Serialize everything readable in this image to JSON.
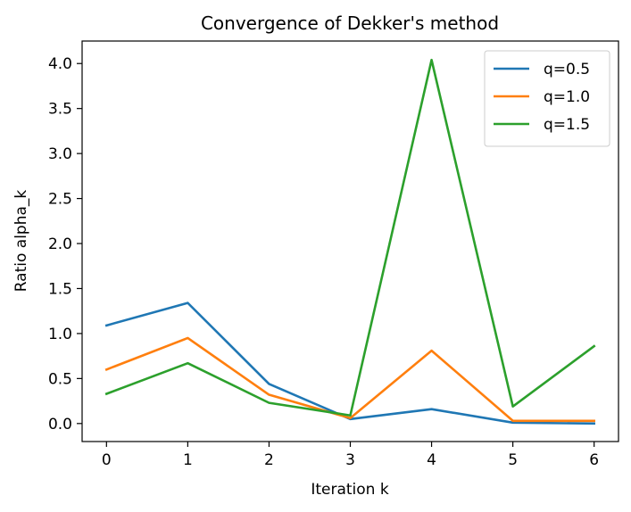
{
  "chart_data": {
    "type": "line",
    "title": "Convergence of Dekker's method",
    "xlabel": "Iteration k",
    "ylabel": "Ratio alpha_k",
    "x": [
      0,
      1,
      2,
      3,
      4,
      5,
      6
    ],
    "xlim": [
      -0.3,
      6.3
    ],
    "ylim": [
      -0.2,
      4.25
    ],
    "xticks": [
      0,
      1,
      2,
      3,
      4,
      5,
      6
    ],
    "yticks": [
      0.0,
      0.5,
      1.0,
      1.5,
      2.0,
      2.5,
      3.0,
      3.5,
      4.0
    ],
    "ytick_labels": [
      "0.0",
      "0.5",
      "1.0",
      "1.5",
      "2.0",
      "2.5",
      "3.0",
      "3.5",
      "4.0"
    ],
    "grid": false,
    "legend_position": "top-right",
    "series": [
      {
        "name": "q=0.5",
        "color": "#1f77b4",
        "values": [
          1.09,
          1.34,
          0.44,
          0.05,
          0.16,
          0.01,
          0.0
        ]
      },
      {
        "name": "q=1.0",
        "color": "#ff7f0e",
        "values": [
          0.6,
          0.95,
          0.32,
          0.06,
          0.81,
          0.03,
          0.03
        ]
      },
      {
        "name": "q=1.5",
        "color": "#2ca02c",
        "values": [
          0.33,
          0.67,
          0.23,
          0.09,
          4.04,
          0.19,
          0.86
        ]
      }
    ]
  }
}
